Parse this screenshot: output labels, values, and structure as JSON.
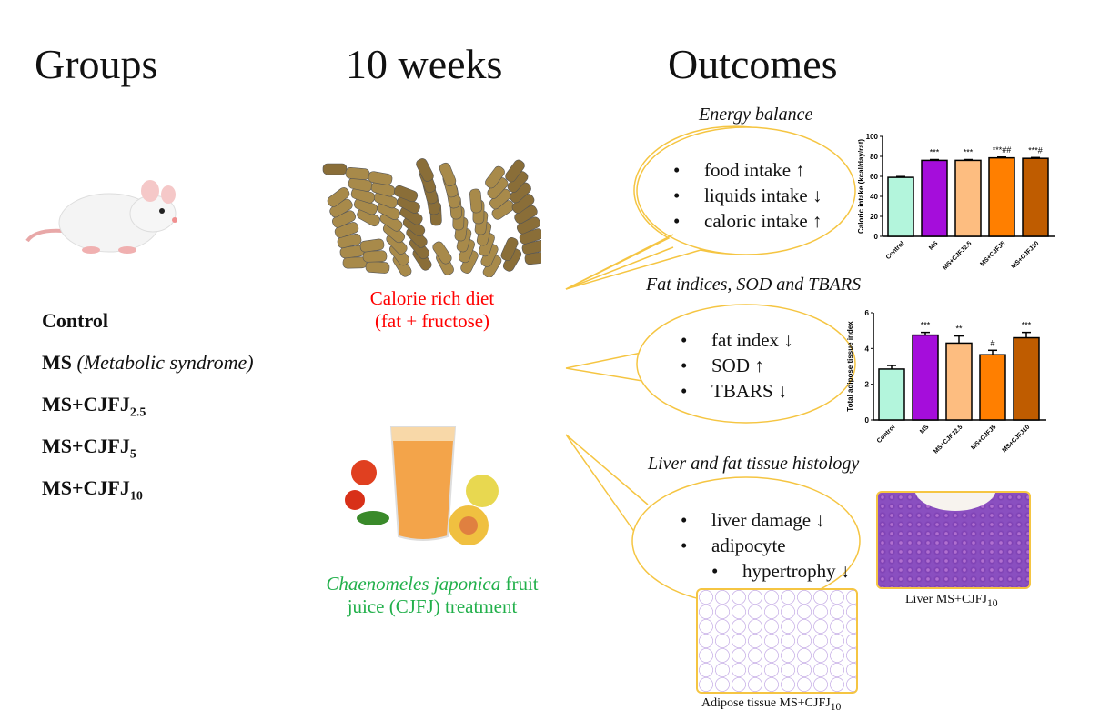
{
  "headers": {
    "groups": "Groups",
    "duration": "10 weeks",
    "outcomes": "Outcomes"
  },
  "groups": [
    {
      "label": "Control",
      "sub": "",
      "note": ""
    },
    {
      "label": "MS",
      "sub": "",
      "note": "(Metabolic syndrome)"
    },
    {
      "label": "MS+CJFJ",
      "sub": "2.5",
      "note": ""
    },
    {
      "label": "MS+CJFJ",
      "sub": "5",
      "note": ""
    },
    {
      "label": "MS+CJFJ",
      "sub": "10",
      "note": ""
    }
  ],
  "diet": {
    "line1": "Calorie rich diet",
    "line2": "(fat + fructose)",
    "color": "#ff0000"
  },
  "treatment": {
    "species": "Chaenomeles japonica",
    "line1_rest": " fruit",
    "line2": "juice (CJFJ) treatment",
    "color": "#22b04b"
  },
  "outcomes": [
    {
      "title": "Energy balance",
      "bullets": [
        "food intake ↑",
        "liquids intake ↓",
        "caloric intake ↑"
      ]
    },
    {
      "title": "Fat indices, SOD and TBARS",
      "bullets": [
        "fat index ↓",
        "SOD ↑",
        "TBARS ↓"
      ]
    },
    {
      "title": "Liver and fat tissue histology",
      "bullets": [
        "liver damage ↓",
        "adipocyte",
        "hypertrophy ↓"
      ]
    }
  ],
  "histology": {
    "liver": {
      "label": "Liver MS+CJFJ",
      "sub": "10"
    },
    "adipose": {
      "label": "Adipose tissue MS+CJFJ",
      "sub": "10"
    }
  },
  "colors": {
    "bubble": "#f5c542",
    "bars": [
      "#b3f5dc",
      "#a50ddb",
      "#fdbd80",
      "#ff7f00",
      "#bf5c00"
    ]
  },
  "chart_data": [
    {
      "type": "bar",
      "ylabel": "Caloric intake (kcal/day/rat)",
      "categories": [
        "Control",
        "MS",
        "MS+CJFJ2.5",
        "MS+CJFJ5",
        "MS+CJFJ10"
      ],
      "values": [
        59,
        76,
        76,
        78.5,
        78
      ],
      "annotations": [
        "",
        "***",
        "***",
        "***##",
        "***#"
      ],
      "ylim": [
        0,
        100
      ],
      "yticks": [
        0,
        20,
        40,
        60,
        80,
        100
      ]
    },
    {
      "type": "bar",
      "ylabel": "Total adipose tissue index",
      "categories": [
        "Control",
        "MS",
        "MS+CJFJ2.5",
        "MS+CJFJ5",
        "MS+CJFJ10"
      ],
      "values": [
        2.85,
        4.75,
        4.3,
        3.65,
        4.6
      ],
      "errors": [
        0.2,
        0.15,
        0.4,
        0.25,
        0.3
      ],
      "annotations": [
        "",
        "***",
        "**",
        "#",
        "***"
      ],
      "ylim": [
        0,
        6
      ],
      "yticks": [
        0,
        2,
        4,
        6
      ]
    }
  ]
}
